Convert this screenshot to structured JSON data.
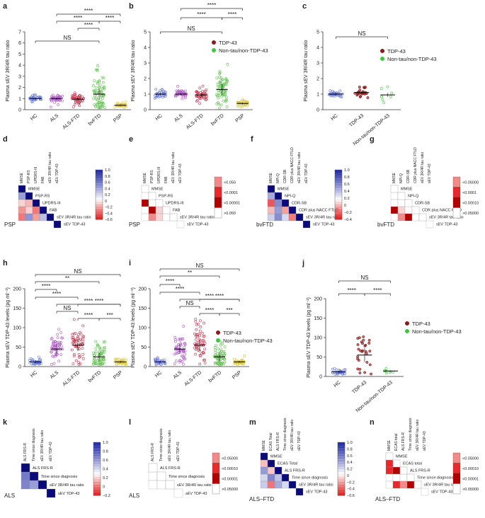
{
  "colors": {
    "HC": "#5b6fd6",
    "ALS": "#b05ac8",
    "ALS-FTD": "#c4324a",
    "bvFTD": "#5cc04a",
    "PSP": "#d8c437",
    "TDP-43": "#8b1a1a",
    "Non-tau/non-TDP-43": "#3cc83c",
    "heat_pos": "#1a1a8c",
    "heat_neg": "#e8282a",
    "line": "#333333"
  },
  "legend": {
    "tdp": "TDP-43",
    "non": "Non-tau/non-TDP-43"
  },
  "sig": {
    "ns": "NS",
    "four": "****",
    "three": "***",
    "two": "**"
  },
  "chart_data": [
    {
      "id": "a",
      "type": "scatter",
      "title": "",
      "ylabel": "Plasma sEV 3R/4R tau ratio",
      "ylim": [
        0,
        7
      ],
      "yticks": [
        0,
        1,
        2,
        3,
        4,
        5,
        6,
        7
      ],
      "categories": [
        "HC",
        "ALS",
        "ALS-FTD",
        "bvFTD",
        "PSP"
      ],
      "series": [
        {
          "group": "HC",
          "center": 1.0,
          "spread": 0.12,
          "n": 30
        },
        {
          "group": "ALS",
          "center": 1.0,
          "spread": 0.15,
          "n": 45
        },
        {
          "group": "ALS-FTD",
          "center": 0.95,
          "spread": 0.2,
          "n": 45
        },
        {
          "group": "bvFTD",
          "center": 1.4,
          "spread": 0.8,
          "n": 70
        },
        {
          "group": "PSP",
          "center": 0.4,
          "spread": 0.1,
          "n": 35
        }
      ]
    },
    {
      "id": "b",
      "type": "scatter",
      "title": "",
      "ylabel": "Plasma sEV 3R/4R tau ratio",
      "ylim": [
        0,
        5
      ],
      "yticks": [
        0,
        1,
        2,
        3,
        4,
        5
      ],
      "categories": [
        "HC",
        "ALS",
        "ALS-FTD",
        "bvFTD",
        "PSP"
      ],
      "series": [
        {
          "group": "HC",
          "center": 1.0,
          "spread": 0.12,
          "n": 30
        },
        {
          "group": "ALS",
          "center": 1.0,
          "spread": 0.15,
          "n": 45
        },
        {
          "group": "ALS-FTD",
          "center": 0.95,
          "spread": 0.2,
          "n": 45
        },
        {
          "group": "bvFTD",
          "center": 1.3,
          "spread": 0.6,
          "n": 70
        },
        {
          "group": "PSP",
          "center": 0.4,
          "spread": 0.1,
          "n": 35
        }
      ],
      "legend": [
        "TDP-43",
        "Non-tau/non-TDP-43"
      ]
    },
    {
      "id": "c",
      "type": "scatter",
      "title": "",
      "ylabel": "Plasma sEV 3R/4R tau ratio",
      "ylim": [
        0,
        5
      ],
      "yticks": [
        0,
        1,
        2,
        3,
        4,
        5
      ],
      "categories": [
        "HC",
        "TDP-43",
        "Non-tau/non-TDP-43"
      ],
      "series": [
        {
          "group": "HC",
          "center": 1.0,
          "spread": 0.1,
          "n": 30
        },
        {
          "group": "TDP-43",
          "center": 1.1,
          "spread": 0.15,
          "n": 25
        },
        {
          "group": "Non-tau/non-TDP-43",
          "center": 0.95,
          "spread": 0.2,
          "n": 8
        }
      ],
      "legend": [
        "TDP-43",
        "Non-tau/non-TDP-43"
      ]
    },
    {
      "id": "h",
      "type": "scatter",
      "title": "",
      "ylabel": "Plasma sEV TDP-43 levels (pg ml⁻¹)",
      "ylim": [
        0,
        200
      ],
      "yticks": [
        0,
        50,
        100,
        150,
        200
      ],
      "categories": [
        "HC",
        "ALS",
        "ALS-FTD",
        "bvFTD",
        "PSP"
      ],
      "series": [
        {
          "group": "HC",
          "center": 12,
          "spread": 5,
          "n": 30
        },
        {
          "group": "ALS",
          "center": 45,
          "spread": 20,
          "n": 55
        },
        {
          "group": "ALS-FTD",
          "center": 55,
          "spread": 25,
          "n": 55
        },
        {
          "group": "bvFTD",
          "center": 25,
          "spread": 20,
          "n": 60
        },
        {
          "group": "PSP",
          "center": 12,
          "spread": 4,
          "n": 35
        }
      ]
    },
    {
      "id": "i",
      "type": "scatter",
      "title": "",
      "ylabel": "Plasma sEV TDP-43 levels (pg ml⁻¹)",
      "ylim": [
        0,
        200
      ],
      "yticks": [
        0,
        50,
        100,
        150,
        200
      ],
      "categories": [
        "HC",
        "ALS",
        "ALS-FTD",
        "bvFTD",
        "PSP"
      ],
      "series": [
        {
          "group": "HC",
          "center": 12,
          "spread": 5,
          "n": 30
        },
        {
          "group": "ALS",
          "center": 45,
          "spread": 20,
          "n": 55
        },
        {
          "group": "ALS-FTD",
          "center": 55,
          "spread": 25,
          "n": 55
        },
        {
          "group": "bvFTD",
          "center": 25,
          "spread": 20,
          "n": 60
        },
        {
          "group": "PSP",
          "center": 12,
          "spread": 4,
          "n": 35
        }
      ],
      "legend": [
        "TDP-43",
        "Non-tau/non-TDP-43"
      ]
    },
    {
      "id": "j",
      "type": "scatter",
      "title": "",
      "ylabel": "Plasma sEV TDP-43 levels (pg ml⁻¹)",
      "ylim": [
        0,
        200
      ],
      "yticks": [
        0,
        50,
        100,
        150,
        200
      ],
      "categories": [
        "HC",
        "TDP-43",
        "Non-tau/non-TDP-43"
      ],
      "series": [
        {
          "group": "HC",
          "center": 12,
          "spread": 5,
          "n": 30
        },
        {
          "group": "TDP-43",
          "center": 55,
          "spread": 30,
          "n": 28
        },
        {
          "group": "Non-tau/non-TDP-43",
          "center": 14,
          "spread": 3,
          "n": 8
        }
      ],
      "legend": [
        "TDP-43",
        "Non-tau/non-TDP-43"
      ]
    },
    {
      "id": "d",
      "type": "heatmap",
      "group": "PSP",
      "vars": [
        "MMSE",
        "PSP-RS",
        "UPDRS-III",
        "FAB",
        "sEV 3R/4R tau ratio",
        "sEV TDP-43"
      ],
      "scale": "r",
      "ticks": [
        "1.0",
        "0.8",
        "0.6",
        "0.4",
        "0.2",
        "0",
        "−0.2",
        "−0.4",
        "−0.6"
      ]
    },
    {
      "id": "e",
      "type": "heatmap",
      "group": "PSP",
      "vars": [
        "MMSE",
        "PSP-RS",
        "UPDRS-III",
        "FAB",
        "sEV 3R/4R tau ratio",
        "sEV TDP-43"
      ],
      "scale": "p",
      "ticks": [
        "<0.050",
        "<0.0001",
        "<0.00001",
        ">0.050"
      ]
    },
    {
      "id": "f",
      "type": "heatmap",
      "group": "bvFTD",
      "vars": [
        "MMSE",
        "NPI-Q",
        "CDR-SB",
        "CDR plus NACC FTLD",
        "sEV 3R/4R tau ratio",
        "sEV TDP-43"
      ],
      "scale": "r",
      "ticks": [
        "1.0",
        "0.8",
        "0.6",
        "0.4",
        "0.2",
        "0",
        "−0.2",
        "−0.4"
      ]
    },
    {
      "id": "g",
      "type": "heatmap",
      "group": "bvFTD",
      "vars": [
        "MMSE",
        "NPI-Q",
        "CDR-SB",
        "CDR plus NACC FTLD",
        "sEV 3R/4R tau ratio",
        "sEV TDP-43"
      ],
      "scale": "p",
      "ticks": [
        "<0.05000",
        "<0.0001",
        "<0.00010",
        ">0.05000"
      ]
    },
    {
      "id": "k",
      "type": "heatmap",
      "group": "ALS",
      "vars": [
        "ALS FRS-R",
        "Time since diagnosis",
        "sEV 3R/4R tau ratio",
        "sEV TDP-43"
      ],
      "scale": "r",
      "ticks": [
        "1.0",
        "0.8",
        "0.6",
        "0.4",
        "0.2",
        "0",
        "−0.2"
      ]
    },
    {
      "id": "l",
      "type": "heatmap",
      "group": "ALS",
      "vars": [
        "ALS FRS-R",
        "Time since diagnosis",
        "sEV 3R/4R tau ratio",
        "sEV TDP-43"
      ],
      "scale": "p",
      "ticks": [
        "<0.05000",
        "<0.00010",
        "<0.00001",
        ">0.05000"
      ]
    },
    {
      "id": "m",
      "type": "heatmap",
      "group": "ALS–FTD",
      "vars": [
        "MMSE",
        "ECAS Total",
        "ALS FRS-R",
        "Time since diagnosis",
        "sEV 3R/4R tau ratio",
        "sEV TDP-43"
      ],
      "scale": "r",
      "ticks": [
        "1.0",
        "0.8",
        "0.6",
        "0.4",
        "0.2",
        "0",
        "−0.2",
        "−0.4",
        "−0.6"
      ]
    },
    {
      "id": "n",
      "type": "heatmap",
      "group": "ALS–FTD",
      "vars": [
        "MMSE",
        "ECAS total",
        "ALS FRS-R",
        "Time since diagnosis",
        "sEV 3R/4R tau ratio",
        "sEV TDP-43"
      ],
      "scale": "p",
      "ticks": [
        "<0.05000",
        "<0.00010",
        "<0.00001",
        ">0.05000"
      ]
    }
  ]
}
